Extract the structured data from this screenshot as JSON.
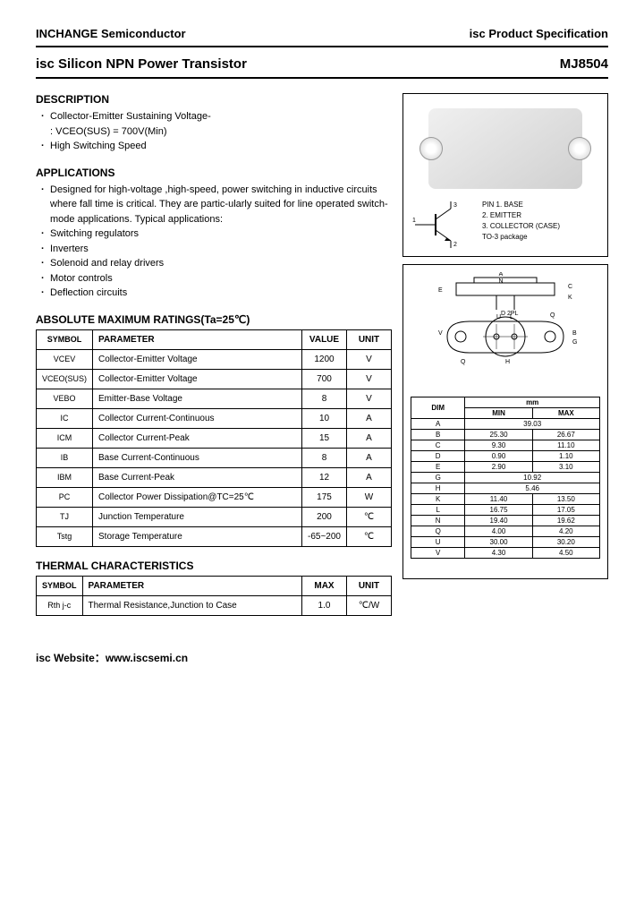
{
  "header": {
    "company": "INCHANGE Semiconductor",
    "spec": "isc Product Specification"
  },
  "title": {
    "product": "isc Silicon NPN Power Transistor",
    "part": "MJ8504"
  },
  "description": {
    "heading": "DESCRIPTION",
    "items": [
      "Collector-Emitter Sustaining Voltage-",
      ": VCEO(SUS) = 700V(Min)",
      "High Switching Speed"
    ]
  },
  "applications": {
    "heading": "APPLICATIONS",
    "intro": "Designed for high-voltage ,high-speed, power switching in inductive circuits where fall time is critical. They are partic-ularly suited for line operated switch-mode applications. Typical applications:",
    "items": [
      "Switching regulators",
      "Inverters",
      "Solenoid and relay drivers",
      "Motor controls",
      "Deflection circuits"
    ]
  },
  "ratings": {
    "heading": "ABSOLUTE MAXIMUM RATINGS(Ta=25℃)",
    "cols": [
      "SYMBOL",
      "PARAMETER",
      "VALUE",
      "UNIT"
    ],
    "rows": [
      [
        "VCEV",
        "Collector-Emitter Voltage",
        "1200",
        "V"
      ],
      [
        "VCEO(SUS)",
        "Collector-Emitter Voltage",
        "700",
        "V"
      ],
      [
        "VEBO",
        "Emitter-Base Voltage",
        "8",
        "V"
      ],
      [
        "IC",
        "Collector Current-Continuous",
        "10",
        "A"
      ],
      [
        "ICM",
        "Collector Current-Peak",
        "15",
        "A"
      ],
      [
        "IB",
        "Base Current-Continuous",
        "8",
        "A"
      ],
      [
        "IBM",
        "Base Current-Peak",
        "12",
        "A"
      ],
      [
        "PC",
        "Collector Power Dissipation@TC=25℃",
        "175",
        "W"
      ],
      [
        "TJ",
        "Junction Temperature",
        "200",
        "℃"
      ],
      [
        "Tstg",
        "Storage Temperature",
        "-65~200",
        "℃"
      ]
    ]
  },
  "thermal": {
    "heading": "THERMAL CHARACTERISTICS",
    "cols": [
      "SYMBOL",
      "PARAMETER",
      "MAX",
      "UNIT"
    ],
    "rows": [
      [
        "Rth j-c",
        "Thermal Resistance,Junction to Case",
        "1.0",
        "℃/W"
      ]
    ]
  },
  "pins": {
    "legend": [
      "PIN 1. BASE",
      "2. EMITTER",
      "3. COLLECTOR (CASE)",
      "TO-3 package"
    ]
  },
  "dimensions": {
    "cols": [
      "DIM",
      "MIN",
      "MAX"
    ],
    "rows": [
      [
        "A",
        "39.03",
        ""
      ],
      [
        "B",
        "25.30",
        "26.67"
      ],
      [
        "C",
        "9.30",
        "11.10"
      ],
      [
        "D",
        "0.90",
        "1.10"
      ],
      [
        "E",
        "2.90",
        "3.10"
      ],
      [
        "G",
        "10.92",
        ""
      ],
      [
        "H",
        "5.46",
        ""
      ],
      [
        "K",
        "11.40",
        "13.50"
      ],
      [
        "L",
        "16.75",
        "17.05"
      ],
      [
        "N",
        "19.40",
        "19.62"
      ],
      [
        "Q",
        "4.00",
        "4.20"
      ],
      [
        "U",
        "30.00",
        "30.20"
      ],
      [
        "V",
        "4.30",
        "4.50"
      ]
    ],
    "mm": "mm"
  },
  "footer": {
    "label": "isc Website：",
    "url": "www.iscsemi.cn"
  }
}
